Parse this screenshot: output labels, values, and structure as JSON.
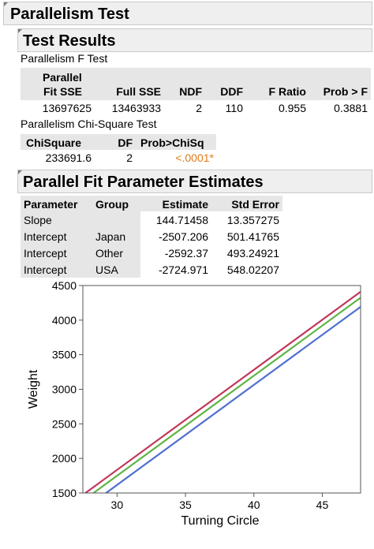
{
  "report": {
    "title": "Parallelism Test",
    "test_results": {
      "title": "Test Results",
      "f_test": {
        "label": "Parallelism F Test",
        "headers": {
          "parallel_sse_line1": "Parallel",
          "parallel_sse_line2": "Fit SSE",
          "full_sse": "Full SSE",
          "ndf": "NDF",
          "ddf": "DDF",
          "f_ratio": "F Ratio",
          "prob": "Prob > F"
        },
        "row": {
          "parallel_sse": "13697625",
          "full_sse": "13463933",
          "ndf": "2",
          "ddf": "110",
          "f_ratio": "0.955",
          "prob": "0.3881"
        }
      },
      "chi_test": {
        "label": "Parallelism Chi-Square Test",
        "headers": {
          "chisquare": "ChiSquare",
          "df": "DF",
          "prob": "Prob>ChiSq"
        },
        "row": {
          "chisquare": "233691.6",
          "df": "2",
          "prob": "<.0001*"
        },
        "significant_color": "#e07b1a"
      }
    },
    "estimates": {
      "title": "Parallel Fit Parameter Estimates",
      "headers": {
        "parameter": "Parameter",
        "group": "Group",
        "estimate": "Estimate",
        "std_error": "Std Error"
      },
      "rows": [
        {
          "parameter": "Slope",
          "group": "",
          "estimate": "144.71458",
          "std_error": "13.357275"
        },
        {
          "parameter": "Intercept",
          "group": "Japan",
          "estimate": "-2507.206",
          "std_error": "501.41765"
        },
        {
          "parameter": "Intercept",
          "group": "Other",
          "estimate": "-2592.37",
          "std_error": "493.24921"
        },
        {
          "parameter": "Intercept",
          "group": "USA",
          "estimate": "-2724.971",
          "std_error": "548.02207"
        }
      ]
    }
  },
  "chart_data": {
    "type": "line",
    "xlabel": "Turning Circle",
    "ylabel": "Weight",
    "xlim": [
      27.5,
      47.8
    ],
    "ylim": [
      1500,
      4500
    ],
    "xticks": [
      "30",
      "35",
      "40",
      "45"
    ],
    "yticks": [
      "1500",
      "2000",
      "2500",
      "3000",
      "3500",
      "4000",
      "4500"
    ],
    "grid": false,
    "slope": 144.71458,
    "series": [
      {
        "intercept": -2507.206,
        "color": "#c0385a"
      },
      {
        "intercept": -2592.37,
        "color": "#5fb545"
      },
      {
        "intercept": -2724.971,
        "color": "#4f6fd0"
      }
    ]
  }
}
